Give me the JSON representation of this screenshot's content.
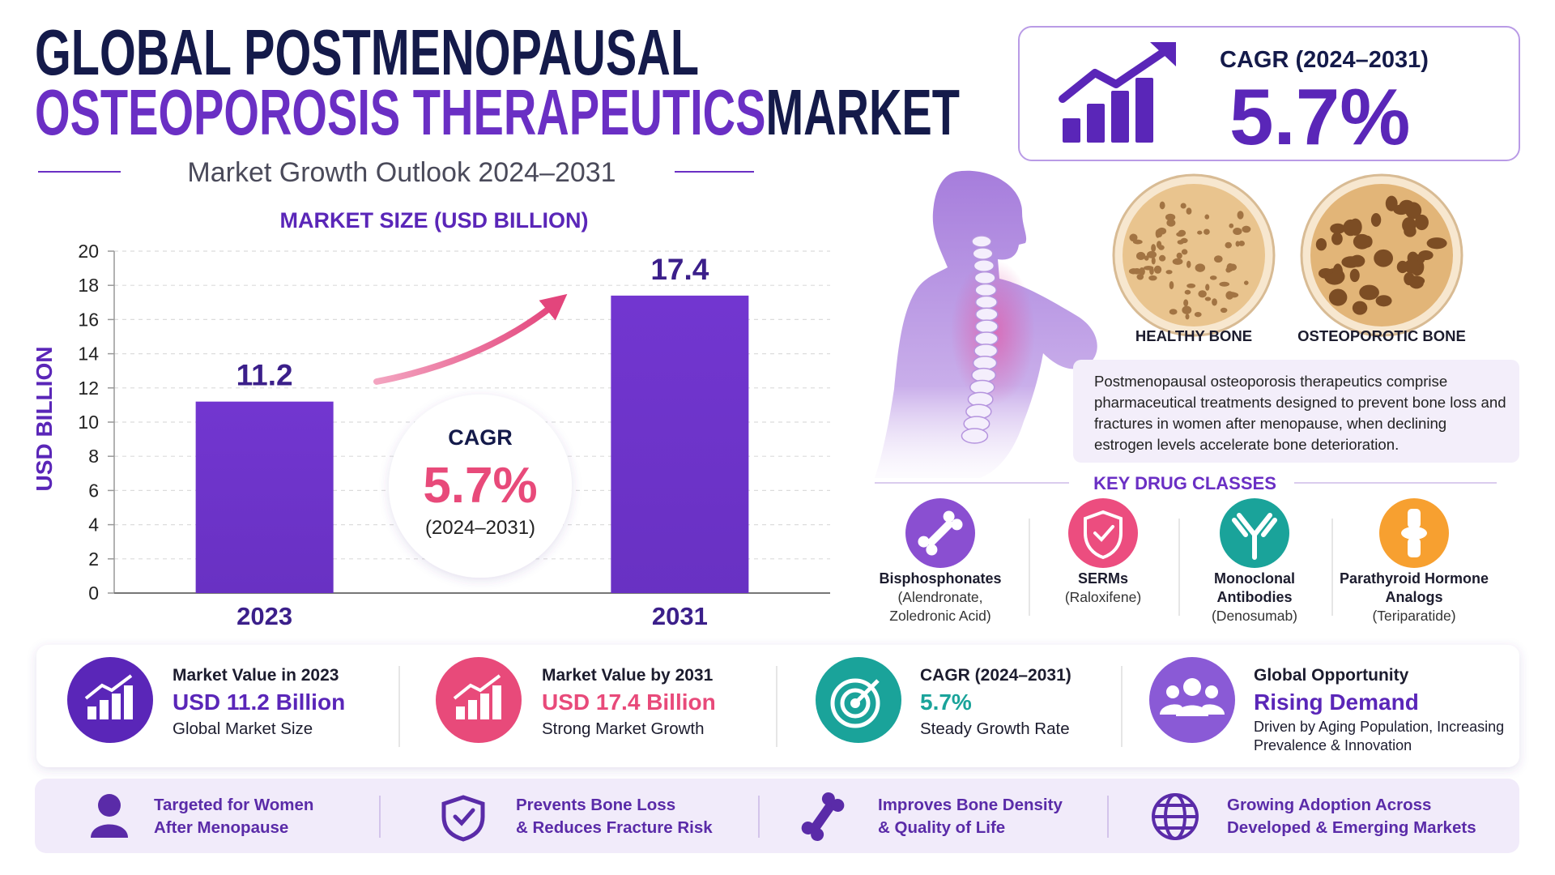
{
  "header": {
    "title_line1": "GLOBAL POSTMENOPAUSAL",
    "title_line2_highlight": "OSTEOPOROSIS THERAPEUTICS",
    "title_line2_rest": "MARKET",
    "subtitle": "Market Growth Outlook 2024–2031"
  },
  "cagr_box": {
    "label": "CAGR (2024–2031)",
    "value": "5.7%"
  },
  "chart_data": {
    "type": "bar",
    "title": "MARKET SIZE (USD BILLION)",
    "y_label": "USD BILLION",
    "categories": [
      "2023",
      "2031"
    ],
    "values": [
      11.2,
      17.4
    ],
    "color": "#7236d0",
    "ylim": [
      0,
      20
    ],
    "yticks": [
      0,
      2,
      4,
      6,
      8,
      10,
      12,
      14,
      16,
      18,
      20
    ],
    "grid": true,
    "annotation": {
      "label": "CAGR",
      "value": "5.7%",
      "period": "(2024–2031)"
    }
  },
  "anatomy": {
    "healthy_label": "HEALTHY BONE",
    "osteoporotic_label": "OSTEOPOROTIC BONE",
    "description": "Postmenopausal osteoporosis therapeutics comprise pharmaceutical treatments designed to prevent bone loss and fractures in women after menopause, when declining estrogen levels accelerate bone deterioration."
  },
  "drug_classes": {
    "title": "KEY DRUG CLASSES",
    "items": [
      {
        "name": "Bisphosphonates",
        "detail": "(Alendronate, Zoledronic Acid)"
      },
      {
        "name": "SERMs",
        "detail": "(Raloxifene)"
      },
      {
        "name": "Monoclonal Antibodies",
        "detail": "(Denosumab)"
      },
      {
        "name": "Parathyroid Hormone Analogs",
        "detail": "(Teriparatide)"
      }
    ]
  },
  "stats": [
    {
      "label": "Market Value in 2023",
      "value": "USD 11.2 Billion",
      "note": "Global Market Size"
    },
    {
      "label": "Market Value by 2031",
      "value": "USD 17.4 Billion",
      "note": "Strong Market Growth"
    },
    {
      "label": "CAGR (2024–2031)",
      "value": "5.7%",
      "note": "Steady Growth Rate"
    },
    {
      "label": "Global Opportunity",
      "value": "Rising Demand",
      "note": "Driven by Aging Population, Increasing Prevalence & Innovation"
    }
  ],
  "benefits": [
    {
      "lines": [
        "Targeted for Women",
        "After Menopause"
      ]
    },
    {
      "lines": [
        "Prevents Bone Loss",
        "& Reduces Fracture Risk"
      ]
    },
    {
      "lines": [
        "Improves Bone Density",
        "& Quality of Life"
      ]
    },
    {
      "lines": [
        "Growing Adoption Across",
        "Developed & Emerging Markets"
      ]
    }
  ]
}
